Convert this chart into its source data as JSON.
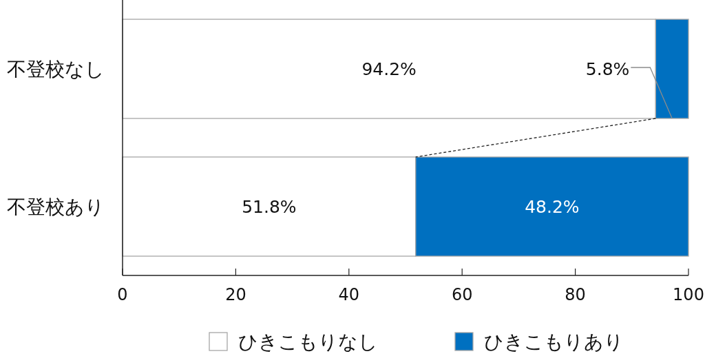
{
  "chart_data": {
    "type": "bar",
    "orientation": "horizontal",
    "stacked": true,
    "categories": [
      "不登校なし",
      "不登校あり"
    ],
    "series": [
      {
        "name": "ひきこもりなし",
        "color": "#ffffff",
        "values": [
          94.2,
          51.8
        ],
        "value_labels": [
          "94.2%",
          "51.8%"
        ]
      },
      {
        "name": "ひきこもりあり",
        "color": "#0070c0",
        "values": [
          5.8,
          48.2
        ],
        "value_labels": [
          "5.8%",
          "48.2%"
        ]
      }
    ],
    "xlim": [
      0,
      100
    ],
    "xticks": [
      0,
      20,
      40,
      60,
      80,
      100
    ],
    "grid": false,
    "legend": "bottom"
  }
}
